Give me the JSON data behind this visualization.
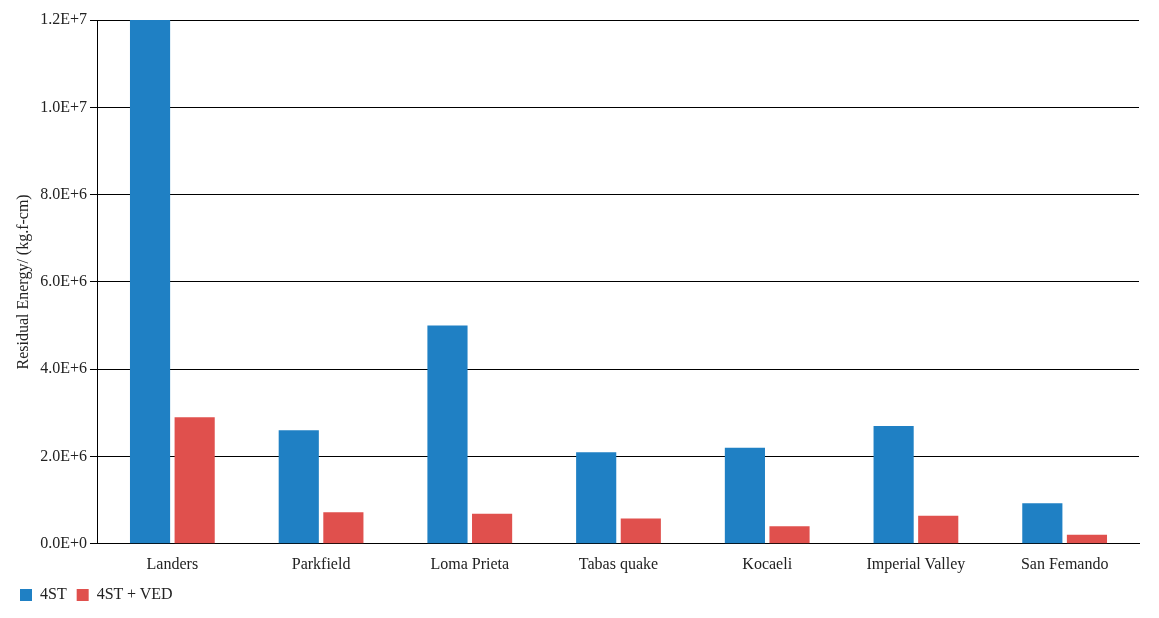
{
  "chart_data": {
    "type": "bar",
    "ylabel": "Residual Energy/ (kg.f-cm)",
    "categories": [
      "Landers",
      "Parkfield",
      "Loma Prieta",
      "Tabas quake",
      "Kocaeli",
      "Imperial Valley",
      "San Femando"
    ],
    "series": [
      {
        "name": "4ST",
        "color": "#1f80c4",
        "values": [
          12000000,
          2600000,
          5000000,
          2100000,
          2200000,
          2700000,
          930000
        ]
      },
      {
        "name": "4ST + VED",
        "color": "#e0504d",
        "values": [
          2900000,
          720000,
          690000,
          580000,
          400000,
          640000,
          210000
        ]
      }
    ],
    "ylim": [
      0,
      12000000
    ],
    "yticks": [
      {
        "value": 0,
        "label": "0.0E+0"
      },
      {
        "value": 2000000,
        "label": "2.0E+6"
      },
      {
        "value": 4000000,
        "label": "4.0E+6"
      },
      {
        "value": 6000000,
        "label": "6.0E+6"
      },
      {
        "value": 8000000,
        "label": "8.0E+6"
      },
      {
        "value": 10000000,
        "label": "1.0E+7"
      },
      {
        "value": 12000000,
        "label": "1.2E+7"
      }
    ],
    "grid": "y",
    "legend": "bottom left"
  }
}
